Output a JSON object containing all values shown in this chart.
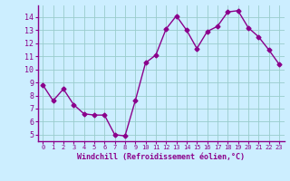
{
  "x": [
    0,
    1,
    2,
    3,
    4,
    5,
    6,
    7,
    8,
    9,
    10,
    11,
    12,
    13,
    14,
    15,
    16,
    17,
    18,
    19,
    20,
    21,
    22,
    23
  ],
  "y": [
    8.8,
    7.6,
    8.5,
    7.3,
    6.6,
    6.5,
    6.5,
    5.0,
    4.9,
    7.6,
    10.5,
    11.1,
    13.1,
    14.1,
    13.0,
    11.6,
    12.9,
    13.3,
    14.4,
    14.5,
    13.2,
    12.5,
    11.5,
    10.4
  ],
  "line_color": "#8B008B",
  "marker": "D",
  "marker_size": 2.5,
  "bg_color": "#cceeff",
  "grid_color": "#99cccc",
  "xlabel": "Windchill (Refroidissement éolien,°C)",
  "xlabel_color": "#8B008B",
  "tick_color": "#8B008B",
  "ylim": [
    4.5,
    14.9
  ],
  "xlim": [
    -0.5,
    23.5
  ],
  "yticks": [
    5,
    6,
    7,
    8,
    9,
    10,
    11,
    12,
    13,
    14
  ],
  "xticks": [
    0,
    1,
    2,
    3,
    4,
    5,
    6,
    7,
    8,
    9,
    10,
    11,
    12,
    13,
    14,
    15,
    16,
    17,
    18,
    19,
    20,
    21,
    22,
    23
  ]
}
